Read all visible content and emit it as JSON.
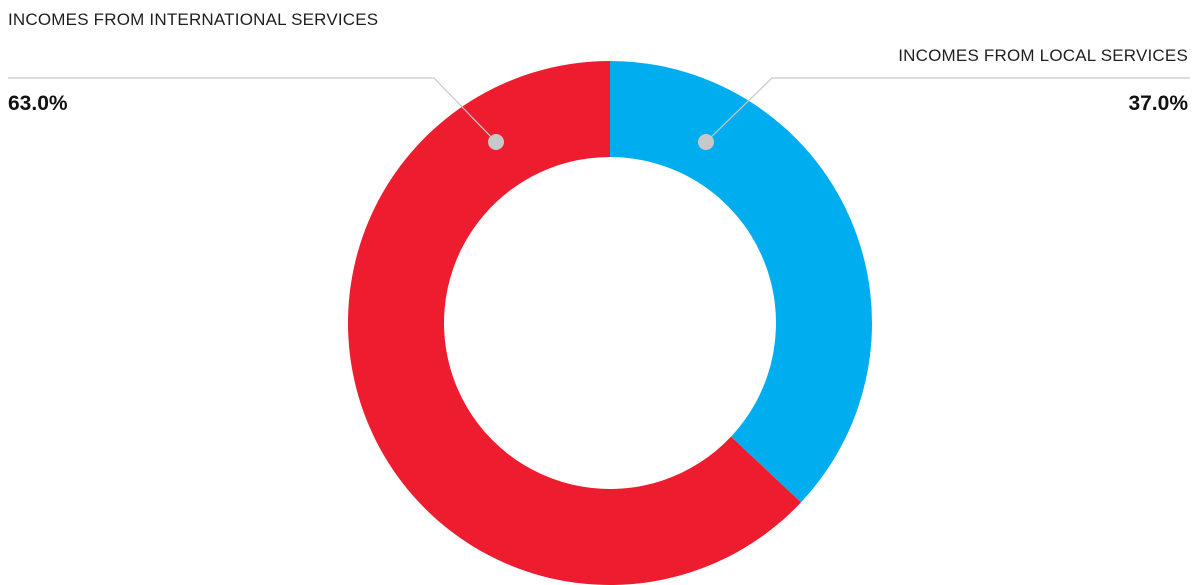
{
  "chart_data": {
    "type": "pie",
    "donut": true,
    "slices": [
      {
        "name": "INCOMES FROM LOCAL SERVICES",
        "value": 37.0,
        "label": "37.0%",
        "color": "#00AEEF"
      },
      {
        "name": "INCOMES FROM INTERNATIONAL SERVICES",
        "value": 63.0,
        "label": "63.0%",
        "color": "#ED1C2E"
      }
    ],
    "legend": "callouts",
    "leader_color": "#C8C8C8",
    "marker_color": "#C8C8C8"
  }
}
